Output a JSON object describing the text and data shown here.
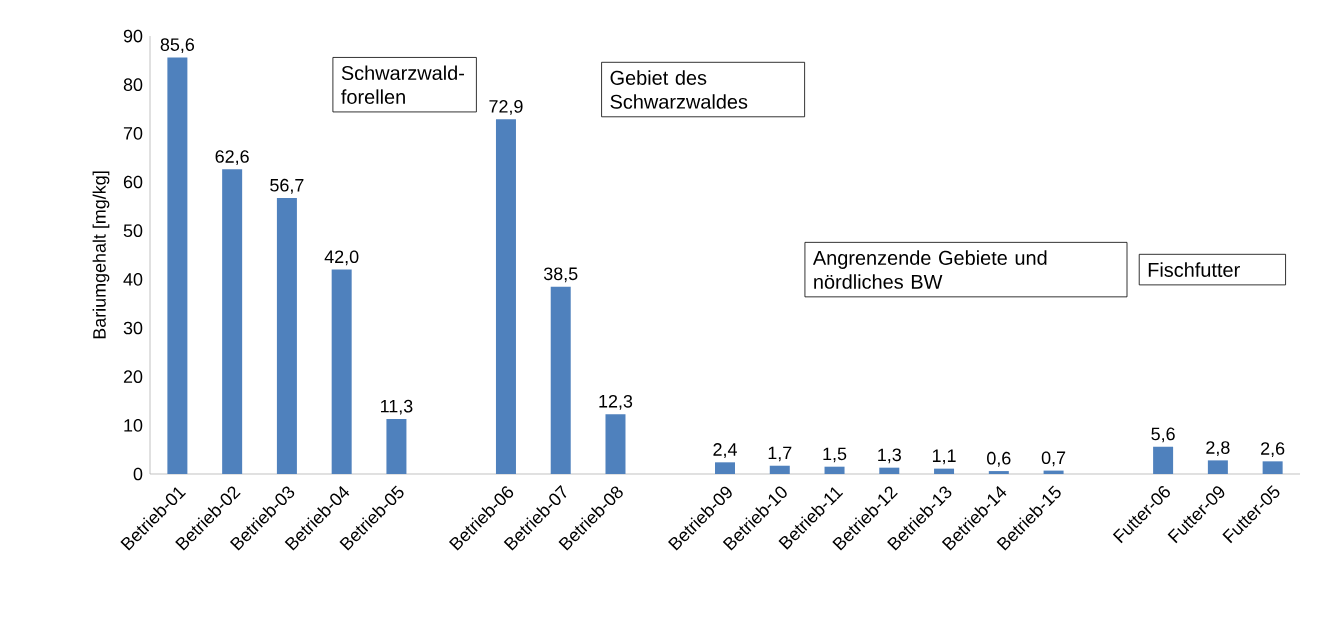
{
  "chart_data": {
    "type": "bar",
    "ylabel": "Bariumgehalt   [mg/kg]",
    "categories": [
      "Betrieb-01",
      "Betrieb-02",
      "Betrieb-03",
      "Betrieb-04",
      "Betrieb-05",
      null,
      "Betrieb-06",
      "Betrieb-07",
      "Betrieb-08",
      null,
      "Betrieb-09",
      "Betrieb-10",
      "Betrieb-11",
      "Betrieb-12",
      "Betrieb-13",
      "Betrieb-14",
      "Betrieb-15",
      null,
      "Futter-06",
      "Futter-09",
      "Futter-05"
    ],
    "values": [
      85.6,
      62.6,
      56.7,
      42.0,
      11.3,
      null,
      72.9,
      38.5,
      12.3,
      null,
      2.4,
      1.7,
      1.5,
      1.3,
      1.1,
      0.6,
      0.7,
      null,
      5.6,
      2.8,
      2.6
    ],
    "value_labels": [
      "85,6",
      "62,6",
      "56,7",
      "42,0",
      "11,3",
      null,
      "72,9",
      "38,5",
      "12,3",
      null,
      "2,4",
      "1,7",
      "1,5",
      "1,3",
      "1,1",
      "0,6",
      "0,7",
      null,
      "5,6",
      "2,8",
      "2,6"
    ],
    "color": "#4f81bd",
    "ylim": [
      0,
      90
    ],
    "yticks": [
      0,
      10,
      20,
      30,
      40,
      50,
      60,
      70,
      80,
      90
    ],
    "grid": false,
    "annotations": [
      "Schwarzwald-forellen",
      "Gebiet des Schwarzwaldes",
      "Angrenzende Gebiete und nördliches BW",
      "Fischfutter"
    ]
  }
}
